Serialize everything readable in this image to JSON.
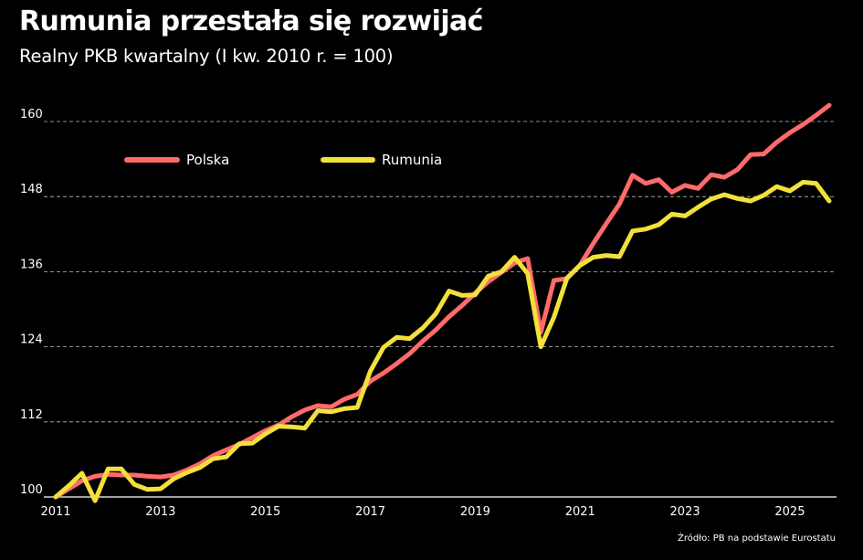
{
  "header": {
    "title": "Rumunia przestała się rozwijać",
    "subtitle": "Realny PKB kwartalny (I kw. 2010 r. = 100)"
  },
  "footer": {
    "source": "Źródło: PB na podstawie Eurostatu"
  },
  "colors": {
    "polska": "#ff6b6b",
    "rumunia": "#f2e03c",
    "grid": "#bbbbbb",
    "background": "#000000"
  },
  "chart_data": {
    "type": "line",
    "title": "Rumunia przestała się rozwijać",
    "subtitle": "Realny PKB kwartalny (I kw. 2010 r. = 100)",
    "xlabel": "",
    "ylabel": "",
    "xlim": [
      2011.0,
      2025.75
    ],
    "ylim": [
      100,
      160
    ],
    "yticks": [
      100,
      112,
      124,
      136,
      148,
      160
    ],
    "xticks": [
      2011,
      2013,
      2015,
      2017,
      2019,
      2021,
      2023,
      2025
    ],
    "grid": "horizontal-dashed",
    "legend": "top-left",
    "series": [
      {
        "name": "Polska",
        "color": "#ff6b6b",
        "x": [
          2011.0,
          2011.25,
          2011.5,
          2011.75,
          2012.0,
          2012.25,
          2012.5,
          2012.75,
          2013.0,
          2013.25,
          2013.5,
          2013.75,
          2014.0,
          2014.25,
          2014.5,
          2014.75,
          2015.0,
          2015.25,
          2015.5,
          2015.75,
          2016.0,
          2016.25,
          2016.5,
          2016.75,
          2017.0,
          2017.25,
          2017.5,
          2017.75,
          2018.0,
          2018.25,
          2018.5,
          2018.75,
          2019.0,
          2019.25,
          2019.5,
          2019.75,
          2020.0,
          2020.25,
          2020.5,
          2020.75,
          2021.0,
          2021.25,
          2021.5,
          2021.75,
          2022.0,
          2022.25,
          2022.5,
          2022.75,
          2023.0,
          2023.25,
          2023.5,
          2023.75,
          2024.0,
          2024.25,
          2024.5,
          2024.75,
          2025.0,
          2025.25,
          2025.5,
          2025.75
        ],
        "values": [
          100.0,
          101.3,
          102.6,
          103.3,
          103.6,
          103.5,
          103.5,
          103.3,
          103.2,
          103.5,
          104.3,
          105.3,
          106.6,
          107.5,
          108.4,
          109.5,
          110.6,
          111.5,
          112.8,
          113.9,
          114.6,
          114.4,
          115.6,
          116.4,
          118.5,
          119.8,
          121.3,
          122.9,
          124.9,
          126.7,
          128.8,
          130.6,
          132.6,
          134.4,
          135.9,
          137.4,
          138.1,
          126.3,
          134.6,
          134.9,
          137.1,
          140.5,
          143.7,
          146.8,
          151.4,
          150.1,
          150.7,
          148.7,
          149.8,
          149.3,
          151.5,
          151.1,
          152.3,
          154.7,
          154.8,
          156.7,
          158.2,
          159.5,
          161.0,
          162.6
        ]
      },
      {
        "name": "Rumunia",
        "color": "#f2e03c",
        "x": [
          2011.0,
          2011.25,
          2011.5,
          2011.75,
          2012.0,
          2012.25,
          2012.5,
          2012.75,
          2013.0,
          2013.25,
          2013.5,
          2013.75,
          2014.0,
          2014.25,
          2014.5,
          2014.75,
          2015.0,
          2015.25,
          2015.5,
          2015.75,
          2016.0,
          2016.25,
          2016.5,
          2016.75,
          2017.0,
          2017.25,
          2017.5,
          2017.75,
          2018.0,
          2018.25,
          2018.5,
          2018.75,
          2019.0,
          2019.25,
          2019.5,
          2019.75,
          2020.0,
          2020.25,
          2020.5,
          2020.75,
          2021.0,
          2021.25,
          2021.5,
          2021.75,
          2022.0,
          2022.25,
          2022.5,
          2022.75,
          2023.0,
          2023.25,
          2023.5,
          2023.75,
          2024.0,
          2024.25,
          2024.5,
          2024.75,
          2025.0,
          2025.25,
          2025.5,
          2025.75
        ],
        "values": [
          100.0,
          101.8,
          103.8,
          99.4,
          104.5,
          104.5,
          102.0,
          101.2,
          101.3,
          102.9,
          103.9,
          104.7,
          106.1,
          106.4,
          108.5,
          108.6,
          110.1,
          111.3,
          111.2,
          111.0,
          113.8,
          113.6,
          114.1,
          114.3,
          120.1,
          123.9,
          125.5,
          125.3,
          127.0,
          129.3,
          132.9,
          132.2,
          132.3,
          135.3,
          136.0,
          138.3,
          135.7,
          124.0,
          128.7,
          135.0,
          137.0,
          138.3,
          138.6,
          138.4,
          142.5,
          142.8,
          143.5,
          145.2,
          144.9,
          146.3,
          147.6,
          148.3,
          147.7,
          147.3,
          148.2,
          149.6,
          148.9,
          150.3,
          150.1,
          147.3
        ]
      }
    ]
  }
}
